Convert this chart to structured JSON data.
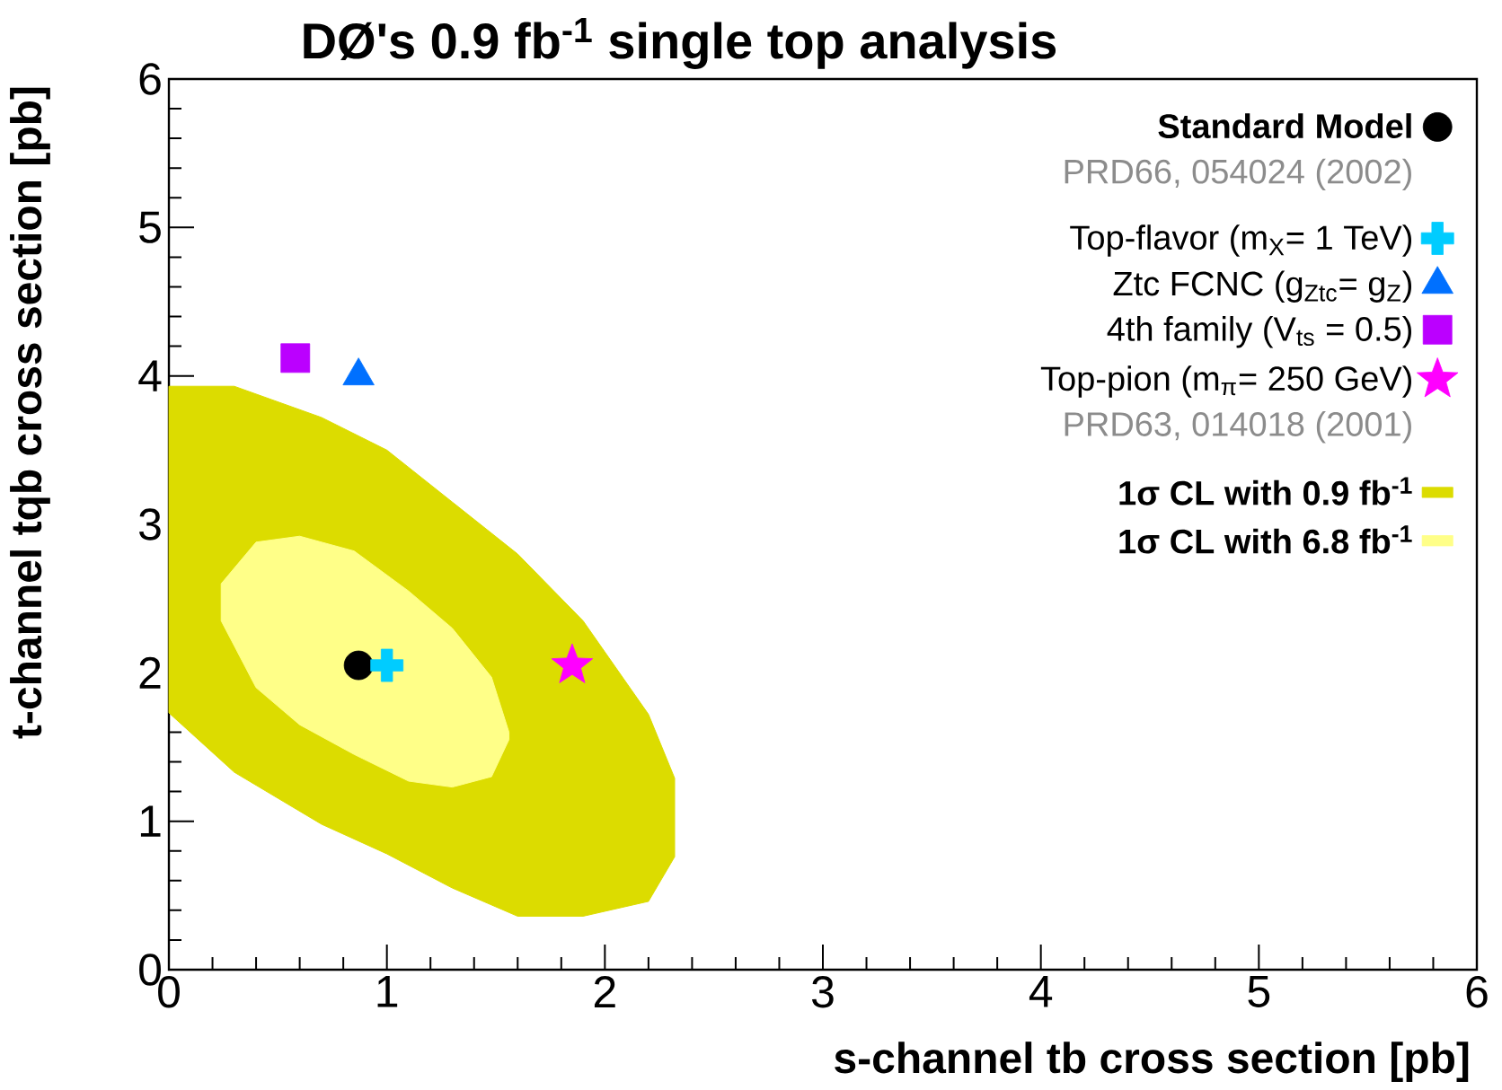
{
  "chart_data": {
    "type": "scatter",
    "title": "DØ's 0.9 fb$^{-1}$ single top analysis",
    "xlabel": "s-channel  tb  cross section  [pb]",
    "ylabel": "t-channel  tqb  cross section  [pb]",
    "xlim": [
      0,
      6
    ],
    "ylim": [
      0,
      6
    ],
    "xticks": [
      0,
      1,
      2,
      3,
      4,
      5,
      6
    ],
    "yticks": [
      0,
      1,
      2,
      3,
      4,
      5,
      6
    ],
    "legend": "top right",
    "annotations": [
      "PRD66, 054024 (2002)",
      "PRD63, 014018 (2001)"
    ],
    "series": [
      {
        "name": "1σ CL with 0.9 fb$^{-1}$",
        "type": "area",
        "color": "#dcdc00",
        "x": [
          0,
          0.3,
          0.7,
          1.0,
          1.3,
          1.6,
          1.9,
          2.2,
          2.32,
          2.32,
          2.2,
          1.9,
          1.6,
          1.3,
          1.0,
          0.7,
          0.3,
          0
        ],
        "values": [
          3.93,
          3.93,
          3.72,
          3.5,
          3.15,
          2.8,
          2.35,
          1.72,
          1.29,
          0.76,
          0.46,
          0.36,
          0.36,
          0.55,
          0.78,
          0.98,
          1.33,
          1.73
        ]
      },
      {
        "name": "1σ CL with 6.8 fb$^{-1}$",
        "type": "area",
        "color": "#ffff88",
        "x": [
          0.24,
          0.4,
          0.6,
          0.85,
          1.1,
          1.3,
          1.48,
          1.56,
          1.56,
          1.48,
          1.3,
          1.1,
          0.85,
          0.6,
          0.4,
          0.24
        ],
        "values": [
          2.6,
          2.88,
          2.92,
          2.82,
          2.55,
          2.3,
          1.97,
          1.6,
          1.55,
          1.3,
          1.23,
          1.27,
          1.45,
          1.65,
          1.9,
          2.35
        ]
      },
      {
        "name": "Standard Model",
        "color": "#000000",
        "marker": "circle",
        "x": [
          0.87
        ],
        "values": [
          2.05
        ]
      },
      {
        "name": "Top-flavor  (m$_{X}$= 1 TeV)",
        "color": "#00ccff",
        "marker": "cross",
        "x": [
          1.0
        ],
        "values": [
          2.05
        ]
      },
      {
        "name": "Ztc FCNC  (g$_{Ztc}$= g$_{Z}$)",
        "color": "#0070ff",
        "marker": "triangle",
        "x": [
          0.87
        ],
        "values": [
          4.0
        ]
      },
      {
        "name": "4th family  (V$_{ts}$ = 0.5)",
        "color": "#bb00ff",
        "marker": "square",
        "x": [
          0.58
        ],
        "values": [
          4.12
        ]
      },
      {
        "name": "Top-pion  (m$_{π}$= 250 GeV)",
        "color": "#ff00ff",
        "marker": "star",
        "x": [
          1.85
        ],
        "values": [
          2.05
        ]
      }
    ]
  }
}
